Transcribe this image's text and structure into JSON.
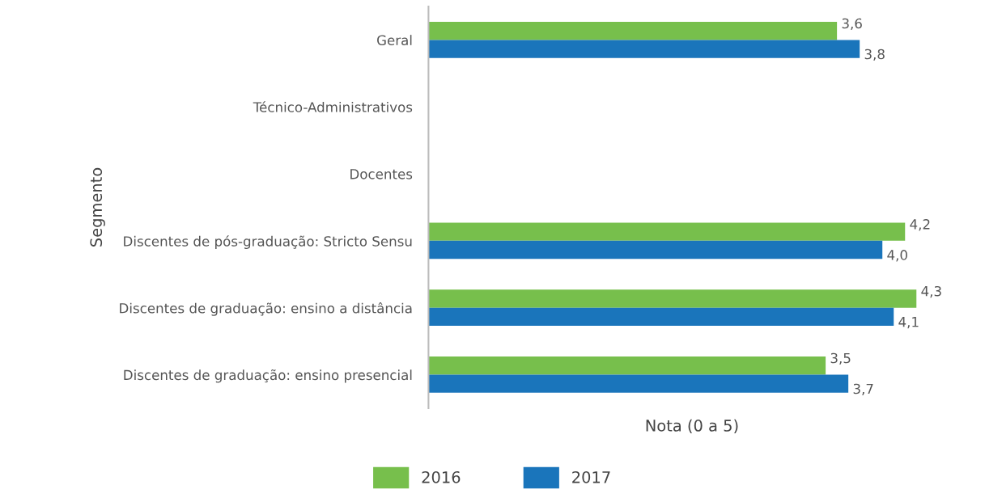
{
  "chart_data": {
    "type": "bar",
    "orientation": "horizontal",
    "xlabel": "Nota (0 a 5)",
    "ylabel": "Segmento",
    "categories": [
      "Geral",
      "Técnico-Administrativos",
      "Docentes",
      "Discentes de pós-graduação: Stricto Sensu",
      "Discentes de graduação: ensino a distância",
      "Discentes de graduação: ensino presencial"
    ],
    "series": [
      {
        "name": "2016",
        "color": "#77bf4c",
        "values": [
          3.6,
          null,
          null,
          4.2,
          4.3,
          3.5
        ],
        "value_labels": [
          "3,6",
          null,
          null,
          "4,2",
          "4,3",
          "3,5"
        ]
      },
      {
        "name": "2017",
        "color": "#1a75bb",
        "values": [
          3.8,
          null,
          null,
          4.0,
          4.1,
          3.7
        ],
        "value_labels": [
          "3,8",
          null,
          null,
          "4,0",
          "4,1",
          "3,7"
        ]
      }
    ],
    "tick_labels": "y",
    "grid": false,
    "legend": "bottom"
  }
}
